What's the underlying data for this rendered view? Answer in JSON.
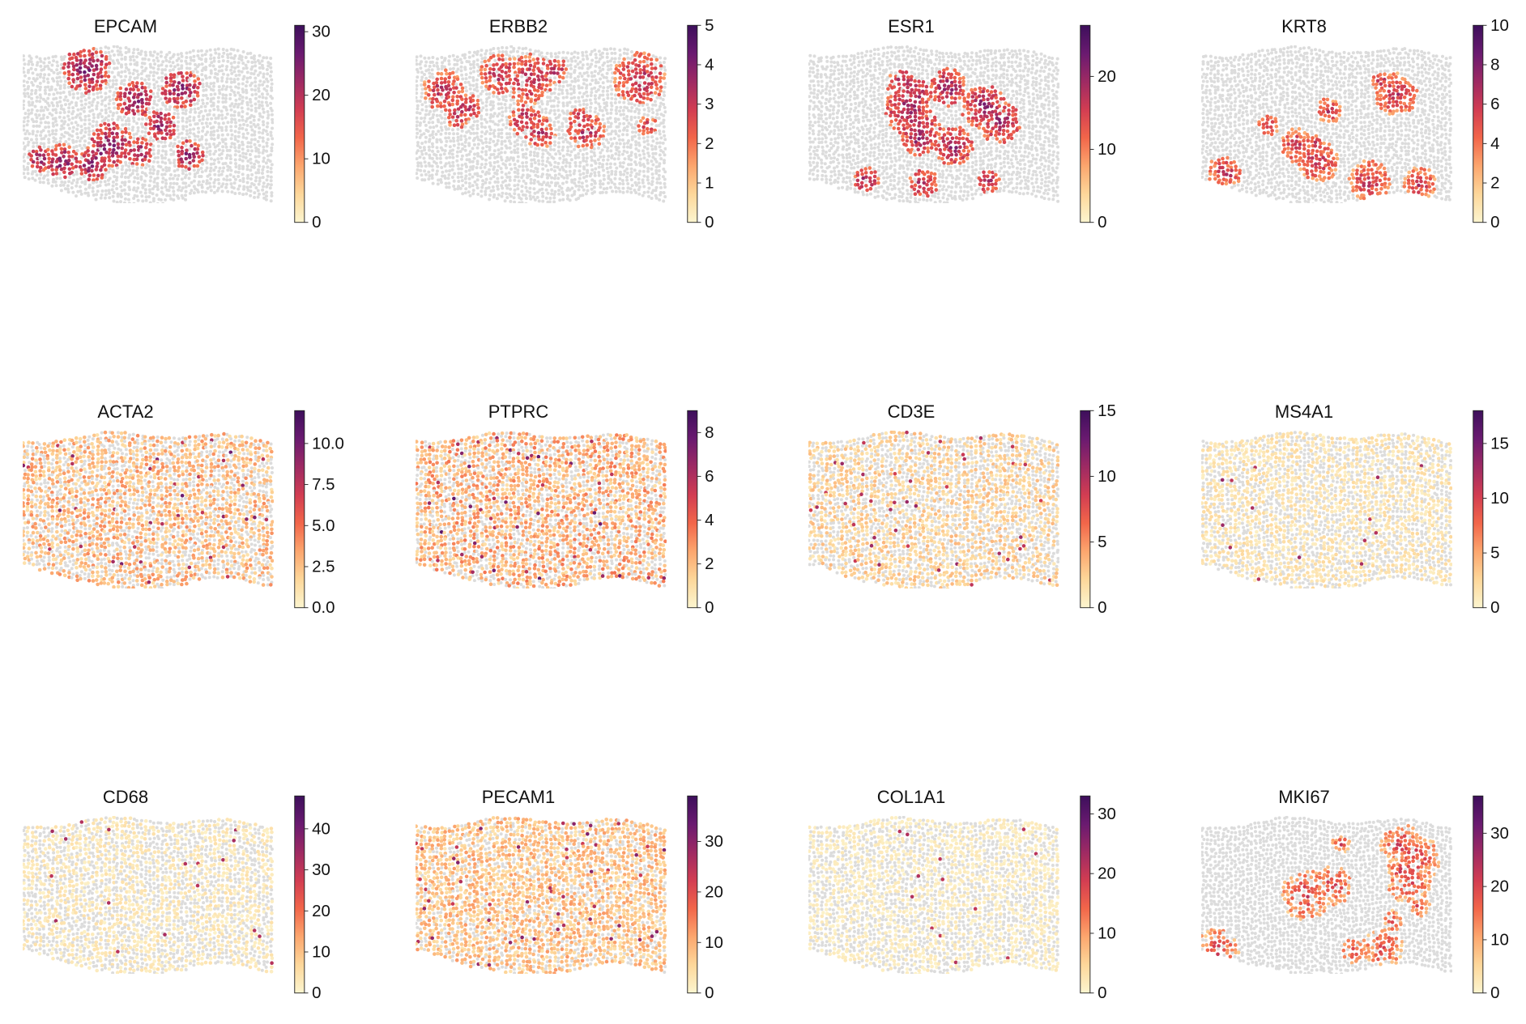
{
  "colormap": [
    "#fcf5cf",
    "#fdd79a",
    "#fca66e",
    "#f2664a",
    "#d23d52",
    "#9e2a63",
    "#6a1a70",
    "#3d0f5b"
  ],
  "background_color": "#dcdcdc",
  "chart_data": [
    {
      "type": "scatter",
      "title": "EPCAM",
      "vmax": 31,
      "ticks": [
        "0",
        "10",
        "20",
        "30"
      ],
      "tick_values": [
        0,
        10,
        20,
        30
      ],
      "pattern": "clusters",
      "mean_level": 0.45,
      "density": 0.6
    },
    {
      "type": "scatter",
      "title": "ERBB2",
      "vmax": 5,
      "ticks": [
        "0",
        "1",
        "2",
        "3",
        "4",
        "5"
      ],
      "tick_values": [
        0,
        1,
        2,
        3,
        4,
        5
      ],
      "pattern": "clusters",
      "mean_level": 0.35,
      "density": 0.55
    },
    {
      "type": "scatter",
      "title": "ESR1",
      "vmax": 27,
      "ticks": [
        "0",
        "10",
        "20"
      ],
      "tick_values": [
        0,
        10,
        20
      ],
      "pattern": "clusters",
      "mean_level": 0.4,
      "density": 0.6
    },
    {
      "type": "scatter",
      "title": "KRT8",
      "vmax": 10,
      "ticks": [
        "0",
        "2",
        "4",
        "6",
        "8",
        "10"
      ],
      "tick_values": [
        0,
        2,
        4,
        6,
        8,
        10
      ],
      "pattern": "clusters",
      "mean_level": 0.3,
      "density": 0.85
    },
    {
      "type": "scatter",
      "title": "ACTA2",
      "vmax": 12,
      "ticks": [
        "0.0",
        "2.5",
        "5.0",
        "7.5",
        "10.0"
      ],
      "tick_values": [
        0,
        2.5,
        5,
        7.5,
        10
      ],
      "pattern": "diffuse",
      "mean_level": 0.22,
      "density": 0.6
    },
    {
      "type": "scatter",
      "title": "PTPRC",
      "vmax": 9,
      "ticks": [
        "0",
        "2",
        "4",
        "6",
        "8"
      ],
      "tick_values": [
        0,
        2,
        4,
        6,
        8
      ],
      "pattern": "diffuse",
      "mean_level": 0.25,
      "density": 0.65
    },
    {
      "type": "scatter",
      "title": "CD3E",
      "vmax": 15,
      "ticks": [
        "0",
        "5",
        "10",
        "15"
      ],
      "tick_values": [
        0,
        5,
        10,
        15
      ],
      "pattern": "diffuse",
      "mean_level": 0.15,
      "density": 0.55
    },
    {
      "type": "scatter",
      "title": "MS4A1",
      "vmax": 18,
      "ticks": [
        "0",
        "5",
        "10",
        "15"
      ],
      "tick_values": [
        0,
        5,
        10,
        15
      ],
      "pattern": "sparse",
      "mean_level": 0.08,
      "density": 0.55
    },
    {
      "type": "scatter",
      "title": "CD68",
      "vmax": 48,
      "ticks": [
        "0",
        "10",
        "20",
        "30",
        "40"
      ],
      "tick_values": [
        0,
        10,
        20,
        30,
        40
      ],
      "pattern": "sparse",
      "mean_level": 0.06,
      "density": 0.5
    },
    {
      "type": "scatter",
      "title": "PECAM1",
      "vmax": 39,
      "ticks": [
        "0",
        "10",
        "20",
        "30"
      ],
      "tick_values": [
        0,
        10,
        20,
        30
      ],
      "pattern": "diffuse",
      "mean_level": 0.2,
      "density": 0.75
    },
    {
      "type": "scatter",
      "title": "COL1A1",
      "vmax": 33,
      "ticks": [
        "0",
        "10",
        "20",
        "30"
      ],
      "tick_values": [
        0,
        10,
        20,
        30
      ],
      "pattern": "sparse",
      "mean_level": 0.04,
      "density": 0.5
    },
    {
      "type": "scatter",
      "title": "MKI67",
      "vmax": 37,
      "ticks": [
        "0",
        "10",
        "20",
        "30"
      ],
      "tick_values": [
        0,
        10,
        20,
        30
      ],
      "pattern": "clusters",
      "mean_level": 0.22,
      "density": 0.45
    }
  ]
}
